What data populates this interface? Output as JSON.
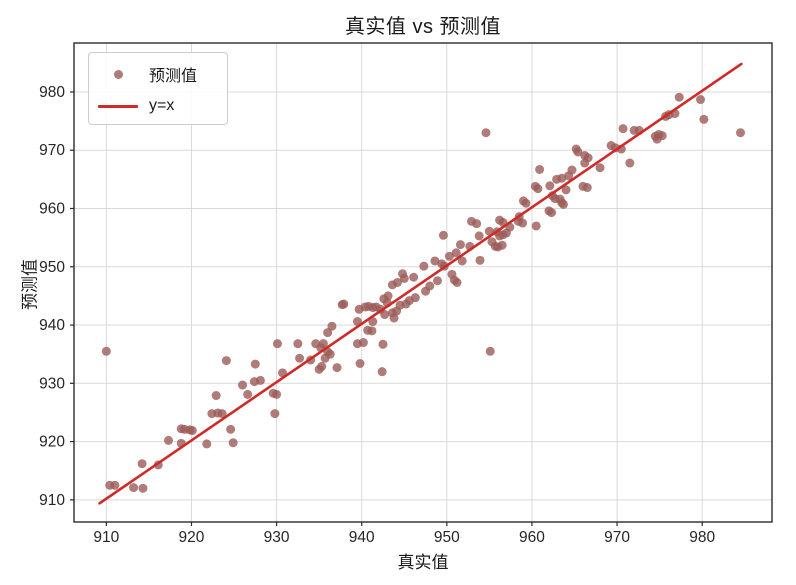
{
  "chart_data": {
    "type": "scatter",
    "title": "真实值 vs 预测值",
    "xlabel": "真实值",
    "ylabel": "预测值",
    "xlim": [
      906.2,
      988.2
    ],
    "ylim": [
      906.2,
      988.4
    ],
    "xticks": [
      910,
      920,
      930,
      940,
      950,
      960,
      970,
      980
    ],
    "yticks": [
      910,
      920,
      930,
      940,
      950,
      960,
      970,
      980
    ],
    "grid": true,
    "legend_position": "upper left",
    "colors": {
      "background": "#ffffff",
      "grid": "#d9d9d9",
      "spine": "#2b2b2b",
      "tick_label": "#262626",
      "point": "#9b5b57",
      "line": "#cf2a27"
    },
    "series": [
      {
        "name": "预测值",
        "type": "scatter",
        "color": "#9b5b57",
        "opacity": 0.8,
        "marker_radius": 4.5,
        "points": [
          [
            910.4,
            912.5
          ],
          [
            911.0,
            912.5
          ],
          [
            913.2,
            912.1
          ],
          [
            914.3,
            912.0
          ],
          [
            914.2,
            916.2
          ],
          [
            916.1,
            916.0
          ],
          [
            917.3,
            920.2
          ],
          [
            918.8,
            922.2
          ],
          [
            919.2,
            922.1
          ],
          [
            919.8,
            922.0
          ],
          [
            920.1,
            921.9
          ],
          [
            918.8,
            919.7
          ],
          [
            921.8,
            919.6
          ],
          [
            922.9,
            927.9
          ],
          [
            922.4,
            924.8
          ],
          [
            923.1,
            924.9
          ],
          [
            923.6,
            924.8
          ],
          [
            924.6,
            922.1
          ],
          [
            924.9,
            919.8
          ],
          [
            926.6,
            928.1
          ],
          [
            929.6,
            928.3
          ],
          [
            930.0,
            928.1
          ],
          [
            929.8,
            924.8
          ],
          [
            910.0,
            935.5
          ],
          [
            924.1,
            933.9
          ],
          [
            926.0,
            929.7
          ],
          [
            927.4,
            930.3
          ],
          [
            928.1,
            930.5
          ],
          [
            927.5,
            933.3
          ],
          [
            930.1,
            936.8
          ],
          [
            930.7,
            931.8
          ],
          [
            932.5,
            936.8
          ],
          [
            932.7,
            934.3
          ],
          [
            934.0,
            934.0
          ],
          [
            934.6,
            936.8
          ],
          [
            935.2,
            936.1
          ],
          [
            935.5,
            936.8
          ],
          [
            936.0,
            935.4
          ],
          [
            936.3,
            935.0
          ],
          [
            935.7,
            934.3
          ],
          [
            935.3,
            932.9
          ],
          [
            935.0,
            932.4
          ],
          [
            937.1,
            932.7
          ],
          [
            936.5,
            939.8
          ],
          [
            936.0,
            938.7
          ],
          [
            937.7,
            943.5
          ],
          [
            937.9,
            943.6
          ],
          [
            939.7,
            942.7
          ],
          [
            939.5,
            940.6
          ],
          [
            939.5,
            936.8
          ],
          [
            940.2,
            937.0
          ],
          [
            939.8,
            933.4
          ],
          [
            940.4,
            943.1
          ],
          [
            940.8,
            943.2
          ],
          [
            941.3,
            943.0
          ],
          [
            941.7,
            943.1
          ],
          [
            942.2,
            942.7
          ],
          [
            940.7,
            939.1
          ],
          [
            941.2,
            939.0
          ],
          [
            941.3,
            940.6
          ],
          [
            942.7,
            941.8
          ],
          [
            943.0,
            943.8
          ],
          [
            943.6,
            942.1
          ],
          [
            943.8,
            941.2
          ],
          [
            944.1,
            942.4
          ],
          [
            944.5,
            943.4
          ],
          [
            945.2,
            943.6
          ],
          [
            942.5,
            936.7
          ],
          [
            942.4,
            932.0
          ],
          [
            942.6,
            944.5
          ],
          [
            943.1,
            945.0
          ],
          [
            943.6,
            946.9
          ],
          [
            944.2,
            947.3
          ],
          [
            944.8,
            948.8
          ],
          [
            945.0,
            948.0
          ],
          [
            946.1,
            948.2
          ],
          [
            946.3,
            944.7
          ],
          [
            945.6,
            944.2
          ],
          [
            947.3,
            950.1
          ],
          [
            947.5,
            945.8
          ],
          [
            948.0,
            946.7
          ],
          [
            948.6,
            951.0
          ],
          [
            948.9,
            947.6
          ],
          [
            949.4,
            950.5
          ],
          [
            949.7,
            950.1
          ],
          [
            949.6,
            955.4
          ],
          [
            950.3,
            951.8
          ],
          [
            950.6,
            948.7
          ],
          [
            950.9,
            947.7
          ],
          [
            951.2,
            947.3
          ],
          [
            951.1,
            952.4
          ],
          [
            951.6,
            953.8
          ],
          [
            951.8,
            951.0
          ],
          [
            952.7,
            953.5
          ],
          [
            952.9,
            957.8
          ],
          [
            953.5,
            957.4
          ],
          [
            953.8,
            955.3
          ],
          [
            953.9,
            951.1
          ],
          [
            955.0,
            956.1
          ],
          [
            955.3,
            954.3
          ],
          [
            955.9,
            956.0
          ],
          [
            956.2,
            955.3
          ],
          [
            956.6,
            955.5
          ],
          [
            955.7,
            953.5
          ],
          [
            956.0,
            953.4
          ],
          [
            956.5,
            953.7
          ],
          [
            957.0,
            955.8
          ],
          [
            957.4,
            956.8
          ],
          [
            956.2,
            958.0
          ],
          [
            956.6,
            957.6
          ],
          [
            958.4,
            957.8
          ],
          [
            958.9,
            957.5
          ],
          [
            958.5,
            958.6
          ],
          [
            955.1,
            935.5
          ],
          [
            954.6,
            973.0
          ],
          [
            959.0,
            961.3
          ],
          [
            959.3,
            960.9
          ],
          [
            960.5,
            957.0
          ],
          [
            960.4,
            963.8
          ],
          [
            960.7,
            963.4
          ],
          [
            960.9,
            966.7
          ],
          [
            962.1,
            963.9
          ],
          [
            962.4,
            962.2
          ],
          [
            962.7,
            961.7
          ],
          [
            962.0,
            959.6
          ],
          [
            962.3,
            959.3
          ],
          [
            962.9,
            965.0
          ],
          [
            963.5,
            965.2
          ],
          [
            963.3,
            961.6
          ],
          [
            963.5,
            961.0
          ],
          [
            963.7,
            960.7
          ],
          [
            964.0,
            963.2
          ],
          [
            964.3,
            965.6
          ],
          [
            964.7,
            966.6
          ],
          [
            966.2,
            969.1
          ],
          [
            966.6,
            968.7
          ],
          [
            966.2,
            967.8
          ],
          [
            966.0,
            963.8
          ],
          [
            966.5,
            963.6
          ],
          [
            968.0,
            967.0
          ],
          [
            965.2,
            970.2
          ],
          [
            965.4,
            969.7
          ],
          [
            969.3,
            970.8
          ],
          [
            969.8,
            970.4
          ],
          [
            970.5,
            970.2
          ],
          [
            970.7,
            973.7
          ],
          [
            971.5,
            967.8
          ],
          [
            972.0,
            973.4
          ],
          [
            972.6,
            973.4
          ],
          [
            974.5,
            972.4
          ],
          [
            974.9,
            972.7
          ],
          [
            975.3,
            972.5
          ],
          [
            974.7,
            971.9
          ],
          [
            975.7,
            975.8
          ],
          [
            976.1,
            976.1
          ],
          [
            976.8,
            976.3
          ],
          [
            977.3,
            979.1
          ],
          [
            979.8,
            978.7
          ],
          [
            980.2,
            975.3
          ],
          [
            984.5,
            973.0
          ]
        ]
      },
      {
        "name": "y=x",
        "type": "line",
        "color": "#cf2a27",
        "width": 2.6,
        "points": [
          [
            909.2,
            909.4
          ],
          [
            984.6,
            984.8
          ]
        ]
      }
    ]
  },
  "legend": {
    "items": [
      {
        "label": "预测值",
        "marker": "dot"
      },
      {
        "label": "y=x",
        "marker": "line"
      }
    ]
  }
}
